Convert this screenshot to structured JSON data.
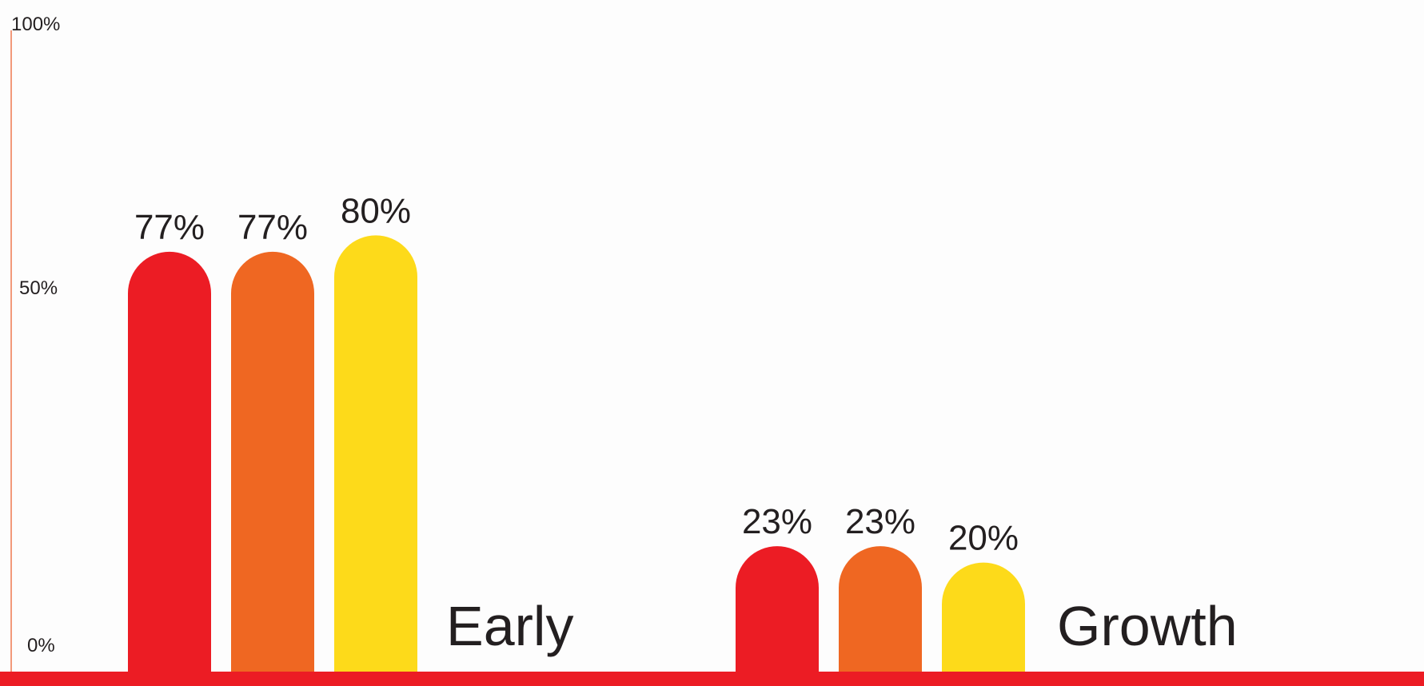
{
  "chart_data": {
    "type": "bar",
    "categories": [
      "Early",
      "Growth"
    ],
    "series": [
      {
        "color": "#ec1c24",
        "values": [
          77,
          23
        ]
      },
      {
        "color": "#ef6722",
        "values": [
          77,
          23
        ]
      },
      {
        "color": "#fdda1a",
        "values": [
          80,
          20
        ]
      }
    ],
    "data_labels": [
      [
        "77%",
        "77%",
        "80%"
      ],
      [
        "23%",
        "23%",
        "20%"
      ]
    ],
    "y_ticks": [
      {
        "value": 100,
        "label": "100%"
      },
      {
        "value": 50,
        "label": "50%"
      },
      {
        "value": 0,
        "label": "0%"
      }
    ],
    "ylim": [
      0,
      100
    ],
    "title": "",
    "xlabel": "",
    "ylabel": "",
    "grid": false,
    "legend": "none",
    "colors": {
      "y_axis": "#f29a7a",
      "baseline": "#ec1c24",
      "label_text": "#231f20",
      "background": "#fdfdfd"
    }
  }
}
